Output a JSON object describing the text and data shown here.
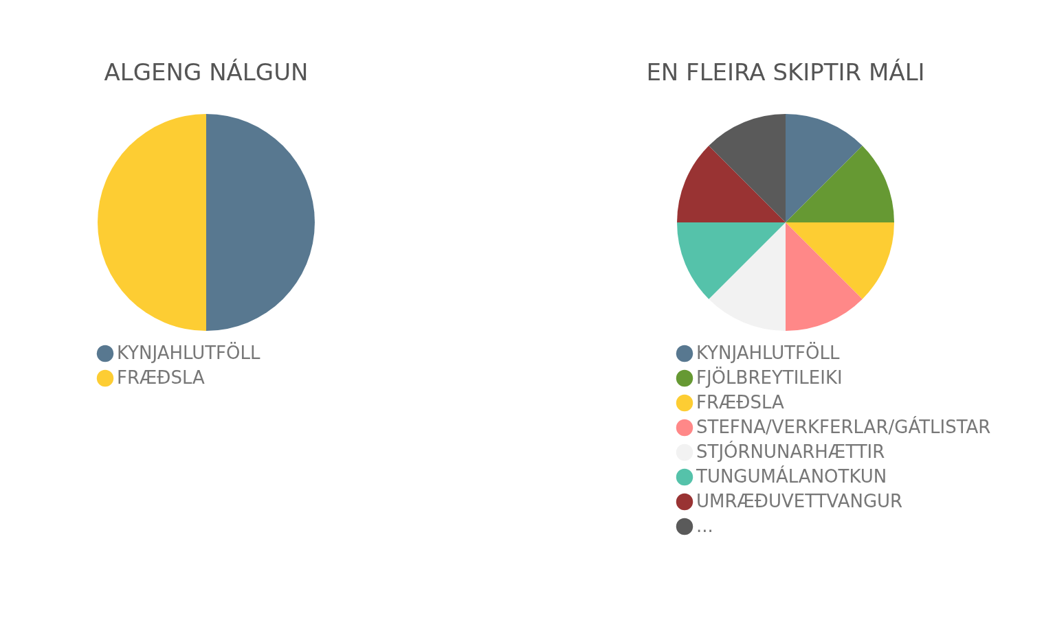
{
  "chart_data": [
    {
      "type": "pie",
      "title": "ALGENG NÁLGUN",
      "categories": [
        "KYNJAHLUTFÖLL",
        "FRÆÐSLA"
      ],
      "values": [
        50,
        50
      ],
      "colors": [
        "#587890",
        "#fdcd33"
      ],
      "legend": "bottom"
    },
    {
      "type": "pie",
      "title": "EN FLEIRA SKIPTIR MÁLI",
      "categories": [
        "KYNJAHLUTFÖLL",
        "FJÖLBREYTILEIKI",
        "FRÆÐSLA",
        "STEFNA/VERKFERLAR/GÁTLISTAR",
        "STJÓRNUNARHÆTTIR",
        "TUNGUMÁLANOTKUN",
        "UMRÆÐUVETTVANGUR",
        "..."
      ],
      "values": [
        12.5,
        12.5,
        12.5,
        12.5,
        12.5,
        12.5,
        12.5,
        12.5
      ],
      "colors": [
        "#587890",
        "#669933",
        "#fdcd33",
        "#ff8888",
        "#f2f2f2",
        "#55c2aa",
        "#993333",
        "#5a5a5a"
      ],
      "legend": "bottom"
    }
  ]
}
